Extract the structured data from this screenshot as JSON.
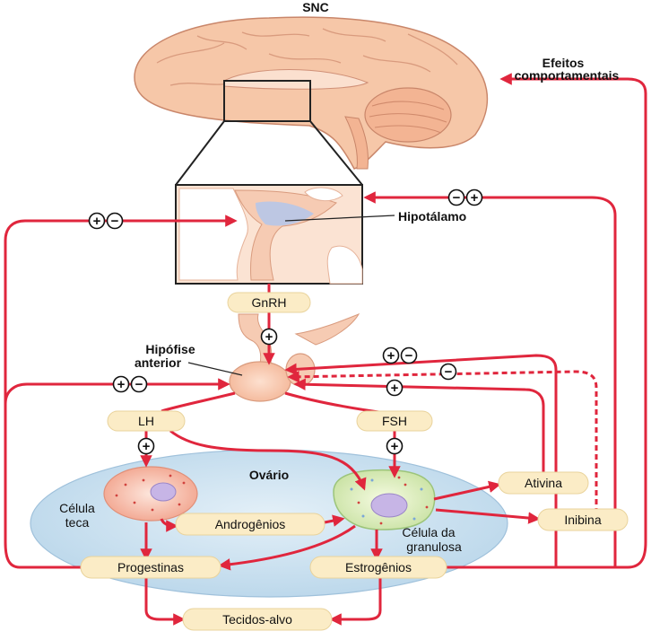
{
  "labels": {
    "snc": "SNC",
    "behavioral_1": "Efeitos",
    "behavioral_2": "comportamentais",
    "hypothalamus": "Hipotálamo",
    "gnrh": "GnRH",
    "anterior_pituitary_1": "Hipófise",
    "anterior_pituitary_2": "anterior",
    "lh": "LH",
    "fsh": "FSH",
    "ovary": "Ovário",
    "theca_cell_1": "Célula",
    "theca_cell_2": "teca",
    "granulosa_cell_1": "Célula da",
    "granulosa_cell_2": "granulosa",
    "androgens": "Androgênios",
    "activin": "Ativina",
    "inhibin": "Inibina",
    "progestins": "Progestinas",
    "estrogens": "Estrogênios",
    "target_tissues": "Tecidos-alvo"
  },
  "signs": {
    "plus": "+",
    "minus": "−"
  },
  "colors": {
    "arrow": "#e0263d",
    "pill": "#fbecc6",
    "brain": "#f6c7a8",
    "ovary": "#cfe3f1",
    "hypothalamus_highlight": "#b9c6e6"
  }
}
